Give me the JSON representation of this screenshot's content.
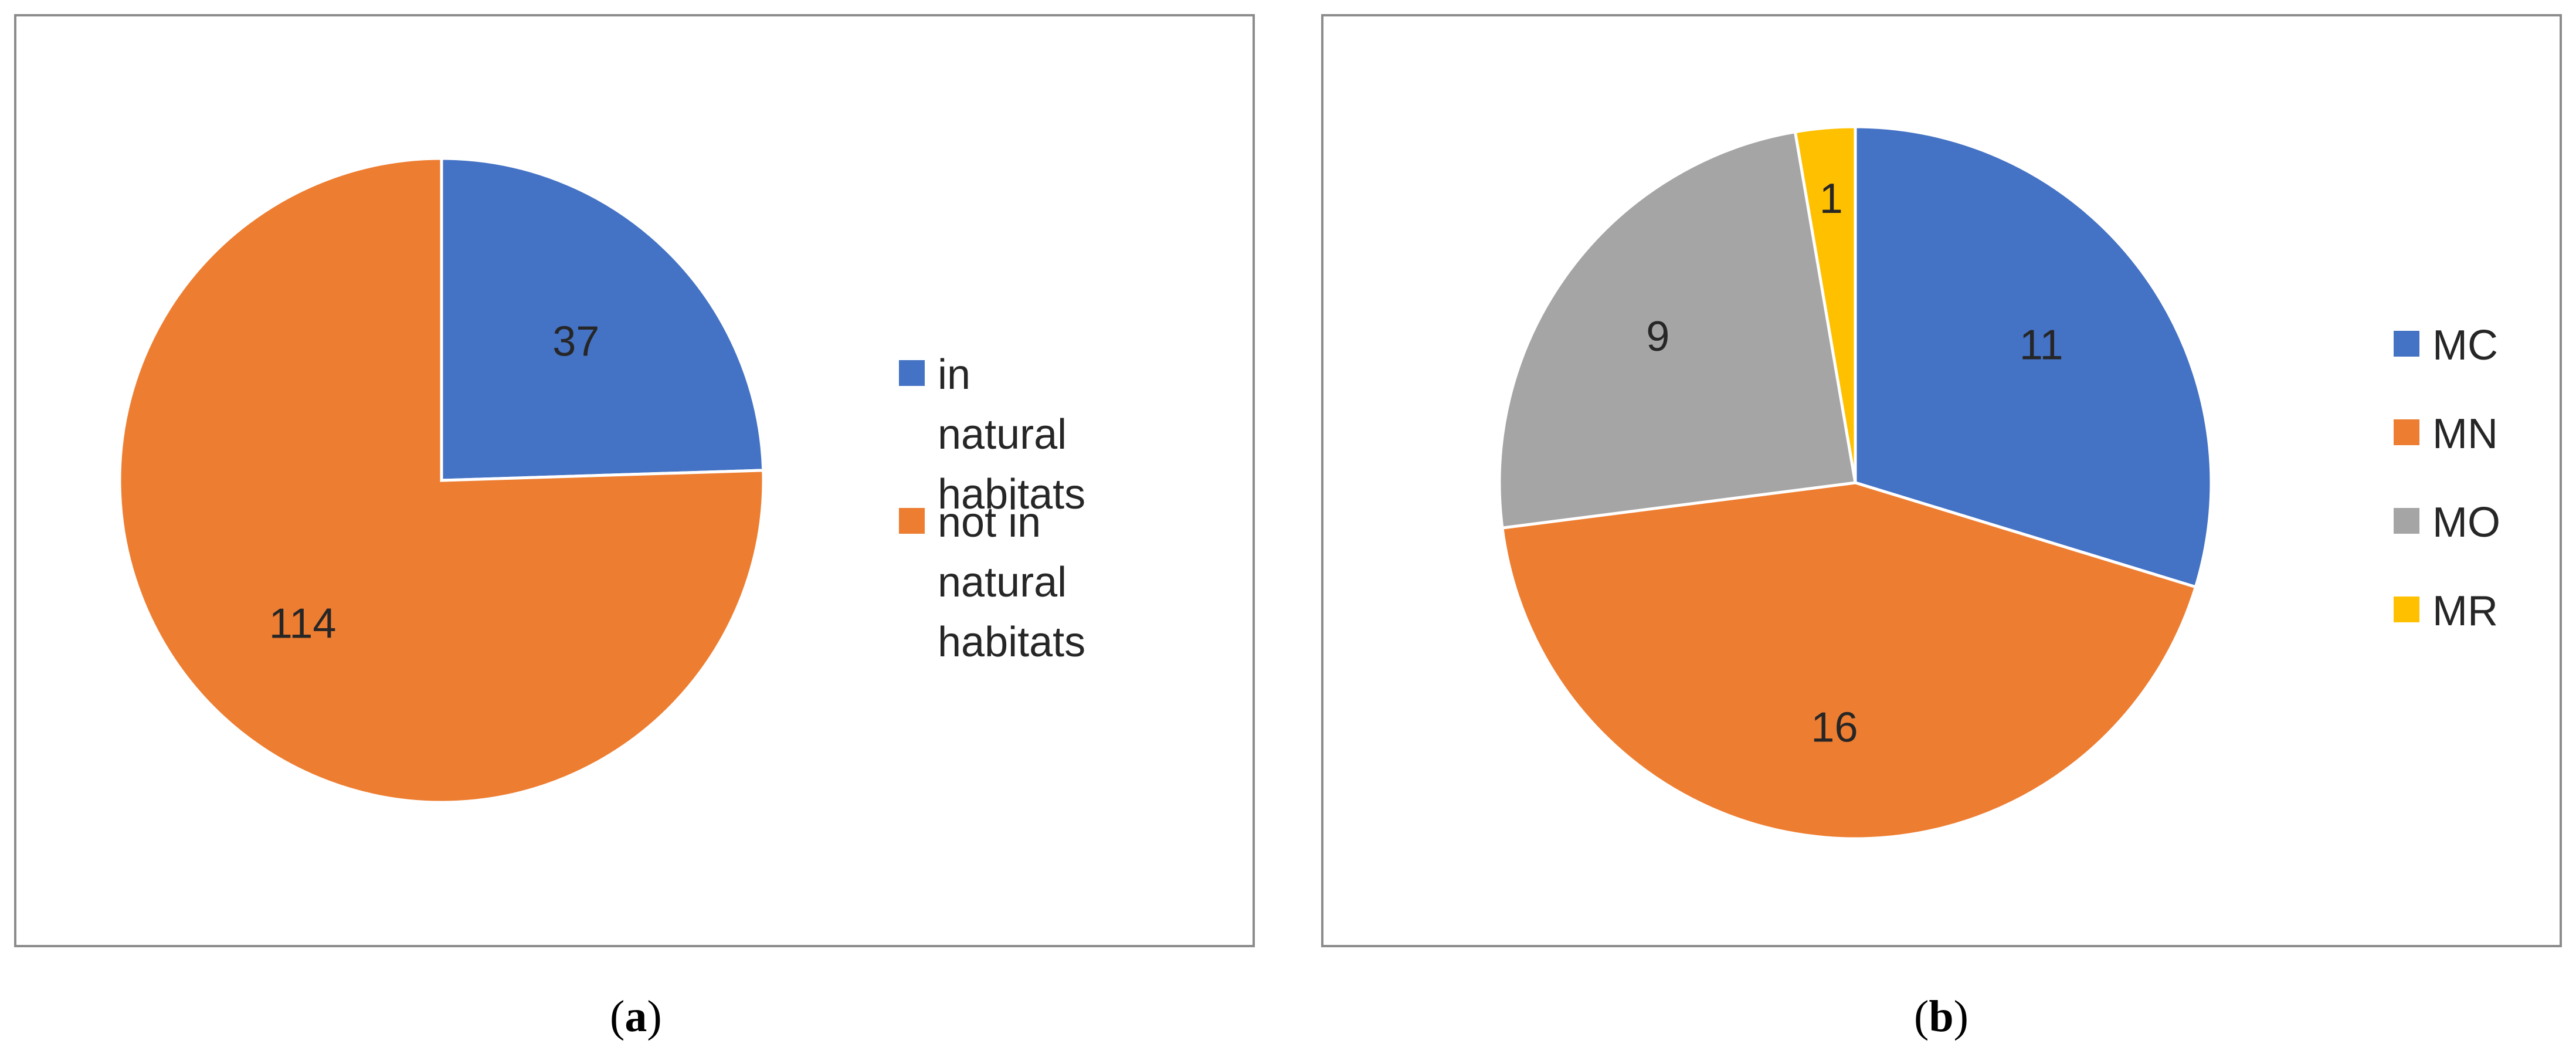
{
  "chart_data": [
    {
      "type": "pie",
      "title": "",
      "categories": [
        "in natural habitats",
        "not in natural habitats"
      ],
      "values": [
        37,
        114
      ],
      "colors": [
        "#4472C4",
        "#ED7D31"
      ],
      "data_labels": [
        "37",
        "114"
      ],
      "legend": {
        "placement": "right",
        "entries": [
          "in natural\nhabitats",
          "not in natural\nhabitats"
        ]
      },
      "caption": "a"
    },
    {
      "type": "pie",
      "title": "",
      "categories": [
        "MC",
        "MN",
        "MO",
        "MR"
      ],
      "values": [
        11,
        16,
        9,
        1
      ],
      "colors": [
        "#4472C4",
        "#ED7D31",
        "#A5A5A5",
        "#FFC000"
      ],
      "data_labels": [
        "11",
        "16",
        "9",
        "1"
      ],
      "legend": {
        "placement": "right",
        "entries": [
          "MC",
          "MN",
          "MO",
          "MR"
        ]
      },
      "caption": "b"
    }
  ],
  "captions": {
    "a": {
      "open": "(",
      "letter": "a",
      "close": ")"
    },
    "b": {
      "open": "(",
      "letter": "b",
      "close": ")"
    }
  }
}
